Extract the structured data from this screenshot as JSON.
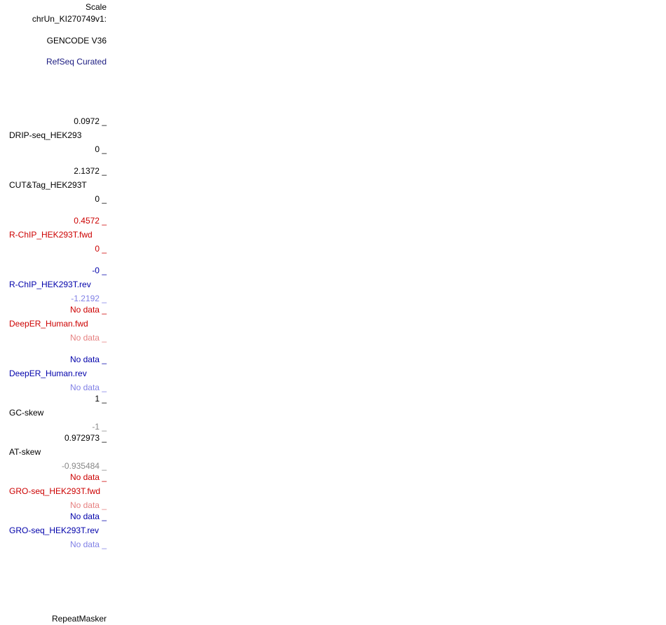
{
  "header": {
    "scale": "Scale",
    "chrom": "chrUn_KI270749v1:",
    "gencode": "GENCODE V36",
    "refseq": "RefSeq Curated"
  },
  "tracks": [
    {
      "name": "DRIP-seq_HEK293",
      "top": "0.0972 _",
      "bottom": "0 _"
    },
    {
      "name": "CUT&Tag_HEK293T",
      "top": "2.1372 _",
      "bottom": "0 _"
    },
    {
      "name": "R-ChIP_HEK293T.fwd",
      "top": "0.4572 _",
      "bottom": "0 _"
    },
    {
      "name": "R-ChIP_HEK293T.rev",
      "top": "-0 _",
      "bottom": "-1.2192 _"
    },
    {
      "name": "DeepER_Human.fwd",
      "top": "No data _",
      "bottom": "No data _"
    },
    {
      "name": "DeepER_Human.rev",
      "top": "No data _",
      "bottom": "No data _"
    },
    {
      "name": "GC-skew",
      "top": "1 _",
      "bottom": "-1 _"
    },
    {
      "name": "AT-skew",
      "top": "0.972973 _",
      "bottom": "-0.935484 _"
    },
    {
      "name": "GRO-seq_HEK293T.fwd",
      "top": "No data _",
      "bottom": "No data _"
    },
    {
      "name": "GRO-seq_HEK293T.rev",
      "top": "No data _",
      "bottom": "No data _"
    }
  ],
  "footer": {
    "repeatmasker": "RepeatMasker"
  }
}
